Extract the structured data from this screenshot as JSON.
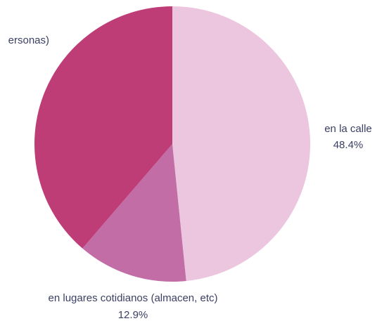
{
  "chart_data": {
    "type": "pie",
    "title": "",
    "slices": [
      {
        "label": "en la calle",
        "value": 48.4,
        "value_label": "48.4%",
        "color": "#ecc5df"
      },
      {
        "label": "en lugares cotidianos (almacen, etc)",
        "value": 12.9,
        "value_label": "12.9%",
        "color": "#c26da6"
      },
      {
        "label": "ersonas)",
        "value": 38.7,
        "value_label": "",
        "color": "#be3d77"
      }
    ],
    "start_angle_deg": 0,
    "direction": "clockwise"
  }
}
